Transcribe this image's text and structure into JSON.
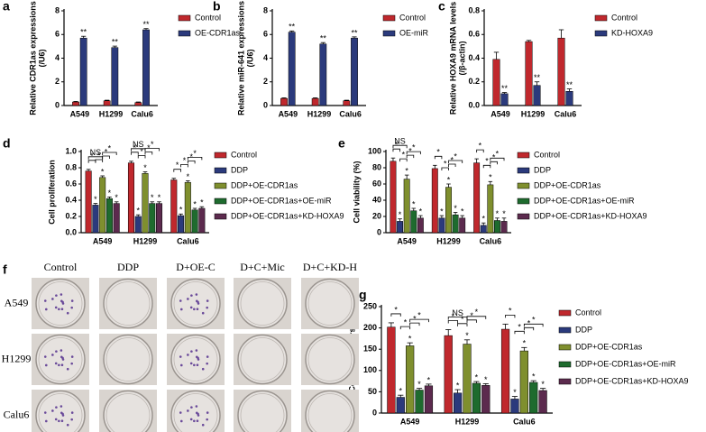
{
  "chart_data": [
    {
      "type": "bar",
      "panel": "a",
      "ylabel": [
        "Relative CDR1as expressions",
        "(/U6)"
      ],
      "categories": [
        "A549",
        "H1299",
        "Calu6"
      ],
      "ylim": [
        0,
        8
      ],
      "yticks": [
        0,
        2,
        4,
        6,
        8
      ],
      "series": [
        {
          "name": "Control",
          "color": "#c0282d",
          "values": [
            0.3,
            0.4,
            0.25
          ],
          "errors": [
            0.05,
            0.05,
            0.05
          ]
        },
        {
          "name": "OE-CDR1as",
          "color": "#2b3a7c",
          "values": [
            5.7,
            4.9,
            6.4
          ],
          "errors": [
            0.15,
            0.12,
            0.1
          ],
          "significance": [
            "**",
            "**",
            "**"
          ]
        }
      ]
    },
    {
      "type": "bar",
      "panel": "b",
      "ylabel": [
        "Relative miR-641 expressions",
        "(/U6)"
      ],
      "categories": [
        "A549",
        "H1299",
        "Calu6"
      ],
      "ylim": [
        0,
        8
      ],
      "yticks": [
        0,
        2,
        4,
        6,
        8
      ],
      "series": [
        {
          "name": "Control",
          "color": "#c0282d",
          "values": [
            0.6,
            0.6,
            0.4
          ],
          "errors": [
            0.05,
            0.05,
            0.05
          ]
        },
        {
          "name": "OE-miR",
          "color": "#2b3a7c",
          "values": [
            6.2,
            5.2,
            5.7
          ],
          "errors": [
            0.1,
            0.12,
            0.1
          ],
          "significance": [
            "**",
            "**",
            "**"
          ]
        }
      ]
    },
    {
      "type": "bar",
      "panel": "c",
      "ylabel": [
        "Relative HOXA9 mRNA levels",
        "(/β-actin)"
      ],
      "categories": [
        "A549",
        "H1299",
        "Calu6"
      ],
      "ylim": [
        0,
        0.8
      ],
      "yticks": [
        {
          "value": 0,
          "label": "0.0"
        },
        0.2,
        0.4,
        0.6,
        0.8
      ],
      "series": [
        {
          "name": "Control",
          "color": "#c0282d",
          "values": [
            0.39,
            0.54,
            0.57
          ],
          "errors": [
            0.06,
            0.01,
            0.07
          ]
        },
        {
          "name": "KD-HOXA9",
          "color": "#2b3a7c",
          "values": [
            0.1,
            0.17,
            0.12
          ],
          "errors": [
            0.01,
            0.03,
            0.02
          ],
          "significance": [
            "**",
            "**",
            "**"
          ]
        }
      ]
    },
    {
      "type": "bar",
      "panel": "d",
      "ylabel": [
        "Cell proliferation"
      ],
      "categories": [
        "A549",
        "H1299",
        "Calu6"
      ],
      "ylim": [
        0,
        1
      ],
      "yticks": [
        {
          "value": 0,
          "label": "0.0"
        },
        0.2,
        0.4,
        0.6,
        0.8,
        {
          "value": 1,
          "label": "1.0"
        }
      ],
      "brackets": [
        [
          "*",
          "NS",
          "*",
          "*",
          "*"
        ],
        [
          "*",
          "NS",
          "*",
          "*",
          "*"
        ],
        [
          "*",
          null,
          "*",
          "*",
          "*"
        ]
      ],
      "series": [
        {
          "name": "Control",
          "color": "#c0282d",
          "values": [
            0.76,
            0.86,
            0.65
          ],
          "errors": [
            0.02,
            0.02,
            0.02
          ]
        },
        {
          "name": "DDP",
          "color": "#2b3a7c",
          "values": [
            0.34,
            0.2,
            0.21
          ],
          "errors": [
            0.02,
            0.02,
            0.02
          ],
          "significance": [
            "*",
            "*",
            "*"
          ]
        },
        {
          "name": "DDP+OE-CDR1as",
          "color": "#7f8f2e",
          "values": [
            0.68,
            0.73,
            0.62
          ],
          "errors": [
            0.02,
            0.02,
            0.02
          ],
          "significance": [
            "*",
            "*",
            "*"
          ]
        },
        {
          "name": "DDP+OE-CDR1as+OE-miR",
          "color": "#1e6b2e",
          "values": [
            0.42,
            0.36,
            0.28
          ],
          "errors": [
            0.02,
            0.02,
            0.02
          ],
          "significance": [
            "*",
            "*",
            "*"
          ]
        },
        {
          "name": "DDP+OE-CDR1as+KD-HOXA9",
          "color": "#5c2a4e",
          "values": [
            0.36,
            0.36,
            0.3
          ],
          "errors": [
            0.02,
            0.02,
            0.02
          ],
          "significance": [
            "*",
            "*",
            "*"
          ]
        }
      ]
    },
    {
      "type": "bar",
      "panel": "e",
      "ylabel": [
        "Cell viability (%)"
      ],
      "categories": [
        "A549",
        "H1299",
        "Calu6"
      ],
      "ylim": [
        0,
        100
      ],
      "yticks": [
        0,
        20,
        40,
        60,
        80,
        100
      ],
      "brackets": [
        [
          "*",
          "NS",
          "*",
          "*",
          "*"
        ],
        [
          "*",
          null,
          "*",
          "*",
          "*"
        ],
        [
          "*",
          null,
          "*",
          "*",
          "*"
        ]
      ],
      "series": [
        {
          "name": "Control",
          "color": "#c0282d",
          "values": [
            88,
            79,
            86
          ],
          "errors": [
            4,
            4,
            5
          ]
        },
        {
          "name": "DDP",
          "color": "#2b3a7c",
          "values": [
            14,
            18,
            9
          ],
          "errors": [
            3,
            3,
            3
          ],
          "significance": [
            "*",
            "*",
            "*"
          ]
        },
        {
          "name": "DDP+OE-CDR1as",
          "color": "#7f8f2e",
          "values": [
            66,
            56,
            59
          ],
          "errors": [
            5,
            4,
            4
          ],
          "significance": [
            "*",
            "*",
            "*"
          ]
        },
        {
          "name": "DDP+OE-CDR1as+OE-miR",
          "color": "#1e6b2e",
          "values": [
            27,
            22,
            15
          ],
          "errors": [
            3,
            3,
            3
          ],
          "significance": [
            "*",
            "*",
            "*"
          ]
        },
        {
          "name": "DDP+OE-CDR1as+KD-HOXA9",
          "color": "#5c2a4e",
          "values": [
            18,
            18,
            14
          ],
          "errors": [
            3,
            3,
            4
          ],
          "significance": [
            "*",
            "*",
            "*"
          ]
        }
      ]
    },
    {
      "type": "bar",
      "panel": "g",
      "ylabel": [
        "Colony numbers"
      ],
      "categories": [
        "A549",
        "H1299",
        "Calu6"
      ],
      "ylim": [
        0,
        250
      ],
      "yticks": [
        0,
        50,
        100,
        150,
        200,
        250
      ],
      "brackets": [
        [
          "*",
          null,
          "*",
          "*",
          "*"
        ],
        [
          "*",
          "NS",
          "*",
          "*",
          "*"
        ],
        [
          "*",
          null,
          "*",
          "*",
          "*"
        ]
      ],
      "series": [
        {
          "name": "Control",
          "color": "#c0282d",
          "values": [
            202,
            182,
            197
          ],
          "errors": [
            10,
            14,
            12
          ]
        },
        {
          "name": "DDP",
          "color": "#2b3a7c",
          "values": [
            37,
            47,
            33
          ],
          "errors": [
            5,
            8,
            6
          ],
          "significance": [
            "*",
            "*",
            "*"
          ]
        },
        {
          "name": "DDP+OE-CDR1as",
          "color": "#7f8f2e",
          "values": [
            158,
            162,
            146
          ],
          "errors": [
            7,
            10,
            8
          ],
          "significance": [
            "*",
            "*",
            "*"
          ]
        },
        {
          "name": "DDP+OE-CDR1as+OE-miR",
          "color": "#1e6b2e",
          "values": [
            54,
            70,
            72
          ],
          "errors": [
            4,
            4,
            4
          ],
          "significance": [
            "*",
            "*",
            "*"
          ]
        },
        {
          "name": "DDP+OE-CDR1as+KD-HOXA9",
          "color": "#5c2a4e",
          "values": [
            64,
            65,
            53
          ],
          "errors": [
            4,
            4,
            5
          ],
          "significance": [
            "*",
            "*",
            "*"
          ]
        }
      ]
    }
  ],
  "photo_panel": {
    "panel": "f",
    "columns": [
      "Control",
      "DDP",
      "D+OE-C",
      "D+C+Mic",
      "D+C+KD-H"
    ],
    "rows": [
      "A549",
      "H1299",
      "Calu6"
    ]
  }
}
